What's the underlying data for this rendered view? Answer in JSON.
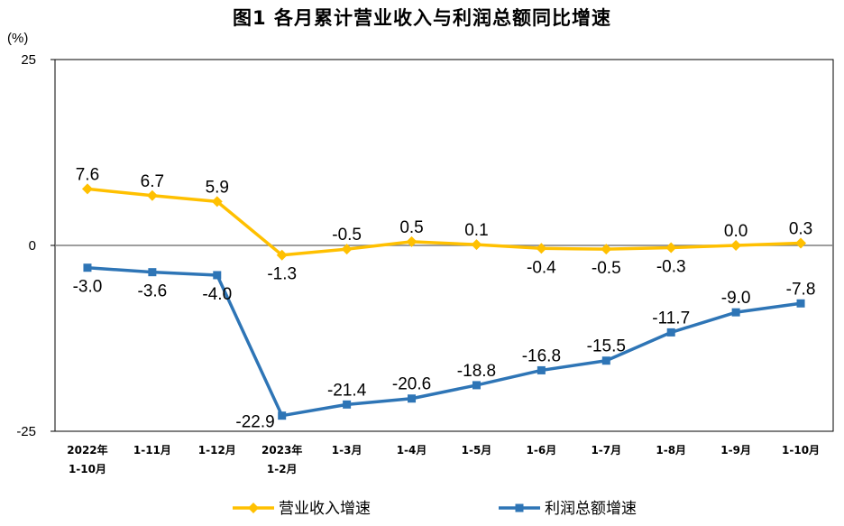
{
  "chart_data": {
    "type": "line",
    "title": "图1 各月累计营业收入与利润总额同比增速",
    "ylabel": "(%)",
    "ylim": [
      -25,
      25
    ],
    "yticks": [
      {
        "value": 25,
        "label": "25"
      },
      {
        "value": 0,
        "label": "0"
      },
      {
        "value": -25,
        "label": "-25"
      }
    ],
    "categories": [
      [
        "2022年",
        "1-10月"
      ],
      [
        "1-11月"
      ],
      [
        "1-12月"
      ],
      [
        "2023年",
        "1-2月"
      ],
      [
        "1-3月"
      ],
      [
        "1-4月"
      ],
      [
        "1-5月"
      ],
      [
        "1-6月"
      ],
      [
        "1-7月"
      ],
      [
        "1-8月"
      ],
      [
        "1-9月"
      ],
      [
        "1-10月"
      ]
    ],
    "series": [
      {
        "name": "营业收入增速",
        "color": "#FFC000",
        "marker": "diamond",
        "values": [
          7.6,
          6.7,
          5.9,
          -1.3,
          -0.5,
          0.5,
          0.1,
          -0.4,
          -0.5,
          -0.3,
          0.0,
          0.3
        ],
        "labels": [
          "7.6",
          "6.7",
          "5.9",
          "-1.3",
          "-0.5",
          "0.5",
          "0.1",
          "-0.4",
          "-0.5",
          "-0.3",
          "0.0",
          "0.3"
        ],
        "label_pos": [
          "above",
          "above",
          "above",
          "below",
          "above",
          "above",
          "above",
          "below",
          "below",
          "below",
          "above",
          "above"
        ]
      },
      {
        "name": "利润总额增速",
        "color": "#2E75B6",
        "marker": "square",
        "values": [
          -3.0,
          -3.6,
          -4.0,
          -22.9,
          -21.4,
          -20.6,
          -18.8,
          -16.8,
          -15.5,
          -11.7,
          -9.0,
          -7.8
        ],
        "labels": [
          "-3.0",
          "-3.6",
          "-4.0",
          "-22.9",
          "-21.4",
          "-20.6",
          "-18.8",
          "-16.8",
          "-15.5",
          "-11.7",
          "-9.0",
          "-7.8"
        ],
        "label_pos": [
          "below",
          "below",
          "below",
          "left",
          "above",
          "above",
          "above",
          "above",
          "above",
          "above",
          "above",
          "above"
        ]
      }
    ],
    "grid": false,
    "legend": "bottom"
  }
}
